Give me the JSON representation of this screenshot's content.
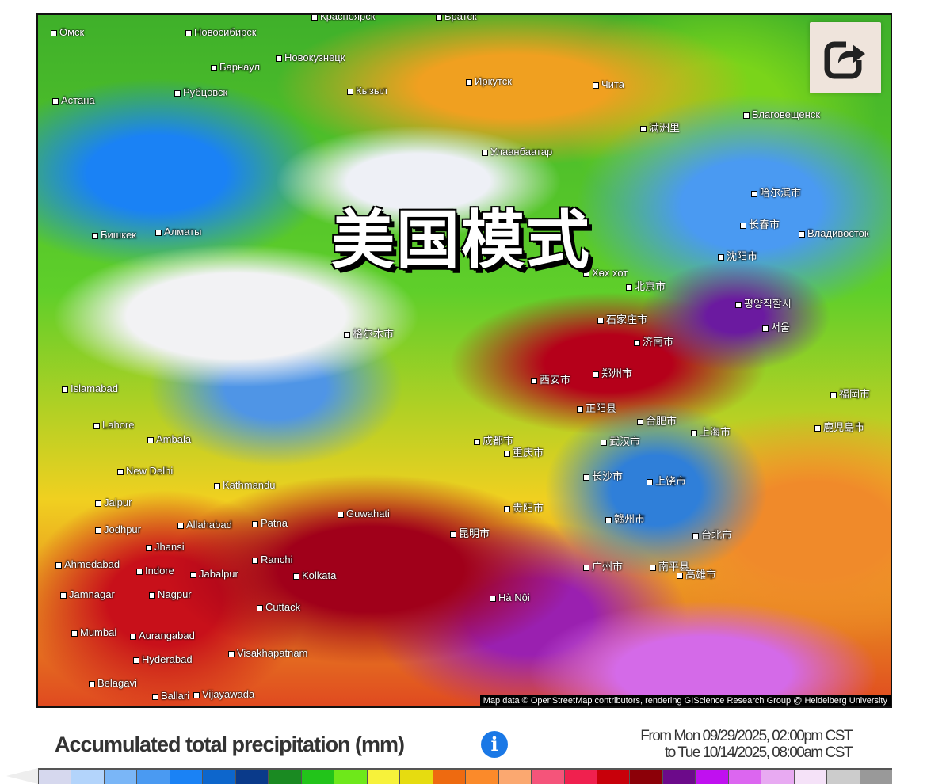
{
  "map": {
    "overlay_text": "美国模式",
    "attribution": "Map data © OpenStreetMap contributors, rendering GIScience Research Group @ Heidelberg University",
    "cities": [
      "Омск",
      "Новосибирск",
      "Красноярск",
      "Братск",
      "Барнаул",
      "Новокузнецк",
      "Астана",
      "Рубцовск",
      "Кызыл",
      "Иркутск",
      "Чита",
      "Благовещенск",
      "Улаанбаатар",
      "满洲里",
      "哈尔滨市",
      "长春市",
      "Владивосток",
      "Бишкек",
      "Алматы",
      "沈阳市",
      "Хөх хот",
      "北京市",
      "평양직할시",
      "서울",
      "石家庄市",
      "济南市",
      "格尔木市",
      "西安市",
      "郑州市",
      "Islamabad",
      "Lahore",
      "正阳县",
      "合肥市",
      "上海市",
      "福岡市",
      "鹿児島市",
      "Ambala",
      "成都市",
      "武汉市",
      "重庆市",
      "New Delhi",
      "Kathmandu",
      "长沙市",
      "上饶市",
      "Jaipur",
      "Guwahati",
      "贵阳市",
      "Jodhpur",
      "Allahabad",
      "Patna",
      "昆明市",
      "赣州市",
      "台北市",
      "Jhansi",
      "Ranchi",
      "Ahmedabad",
      "Indore",
      "Jabalpur",
      "Kolkata",
      "广州市",
      "南平县",
      "Jamnagar",
      "Nagpur",
      "Hà Nội",
      "高雄市",
      "Cuttack",
      "Mumbai",
      "Aurangabad",
      "Hyderabad",
      "Visakhapatnam",
      "Belagavi",
      "Ballari",
      "Vijayawada"
    ]
  },
  "share_icon": "share-arrow-icon",
  "legend": {
    "title": "Accumulated total precipitation (mm)",
    "info_icon": "i",
    "date_from": "From Mon 09/29/2025, 02:00pm CST",
    "date_to": "to Tue 10/14/2025, 08:00am CST",
    "colors": [
      "#d6d8ee",
      "#b3d4fb",
      "#7ab6f7",
      "#4a9af2",
      "#1a82f5",
      "#0d66cc",
      "#0a3a8a",
      "#1a8a22",
      "#22c41a",
      "#6ee81a",
      "#f7f23a",
      "#e6dc10",
      "#ee6a10",
      "#fb8a2a",
      "#fba870",
      "#f5547a",
      "#f0204e",
      "#c8000a",
      "#8c0008",
      "#6c0a8a",
      "#c010f0",
      "#dc66f0",
      "#e8aaf2",
      "#f5e2f8",
      "#cccccc",
      "#999999"
    ]
  }
}
